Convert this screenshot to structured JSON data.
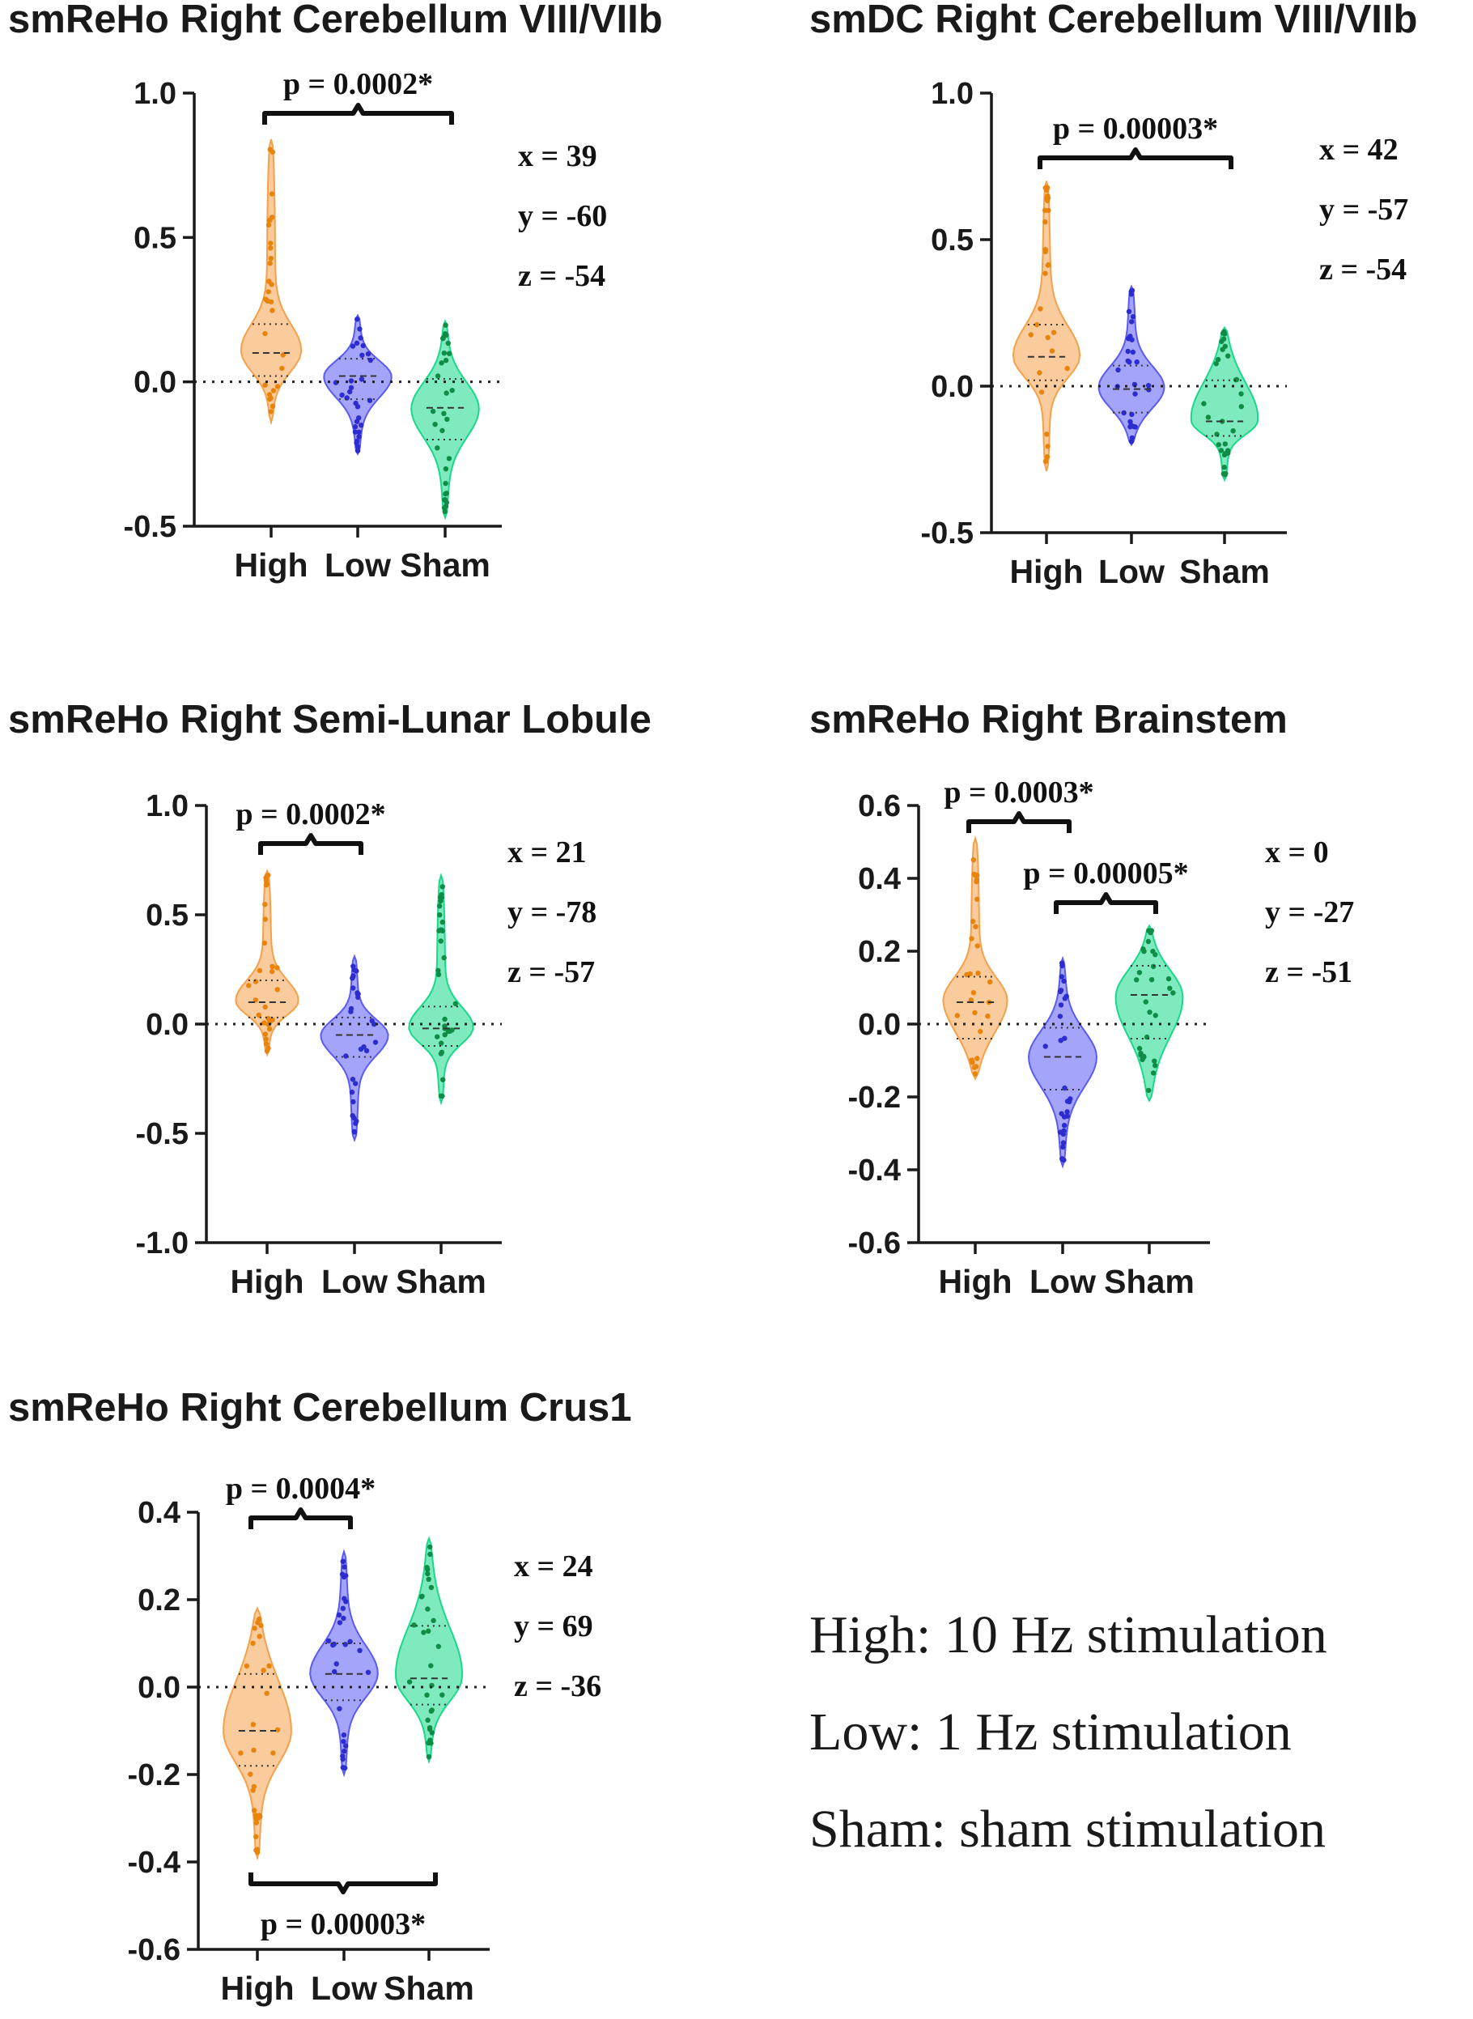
{
  "colors": {
    "High": "#f5a04a",
    "Low": "#5a5af5",
    "Sham": "#18d98a",
    "HighDot": "#e8840c",
    "LowDot": "#2d2dcf",
    "ShamDot": "#0f8c45"
  },
  "chart_data": [
    {
      "type": "violin",
      "title": "smReHo Right Cerebellum VIII/VIIb",
      "categories": [
        "High",
        "Low",
        "Sham"
      ],
      "ylim": [
        -0.5,
        1.0
      ],
      "yticks": [
        1.0,
        0.5,
        0.0,
        -0.5
      ],
      "ytick_labels": [
        "1.0",
        "0.5",
        "0.0",
        "-0.5"
      ],
      "series": [
        {
          "name": "High",
          "min": -0.14,
          "max": 0.84,
          "q1": 0.02,
          "median": 0.1,
          "q3": 0.2
        },
        {
          "name": "Low",
          "min": -0.25,
          "max": 0.23,
          "q1": -0.06,
          "median": 0.02,
          "q3": 0.08
        },
        {
          "name": "Sham",
          "min": -0.47,
          "max": 0.21,
          "q1": -0.2,
          "median": -0.09,
          "q3": 0.01
        }
      ],
      "brackets": [
        {
          "from": "High",
          "to": "Sham",
          "label": "p = 0.0002*"
        }
      ],
      "coords": [
        "x = 39",
        "y = -60",
        "z = -54"
      ]
    },
    {
      "type": "violin",
      "title": "smDC Right Cerebellum VIII/VIIb",
      "categories": [
        "High",
        "Low",
        "Sham"
      ],
      "ylim": [
        -0.5,
        1.0
      ],
      "yticks": [
        1.0,
        0.5,
        0.0,
        -0.5
      ],
      "ytick_labels": [
        "1.0",
        "0.5",
        "0.0",
        "-0.5"
      ],
      "series": [
        {
          "name": "High",
          "min": -0.29,
          "max": 0.7,
          "q1": 0.02,
          "median": 0.1,
          "q3": 0.21
        },
        {
          "name": "Low",
          "min": -0.2,
          "max": 0.34,
          "q1": -0.09,
          "median": -0.01,
          "q3": 0.07
        },
        {
          "name": "Sham",
          "min": -0.32,
          "max": 0.2,
          "q1": -0.17,
          "median": -0.12,
          "q3": 0.02
        }
      ],
      "brackets": [
        {
          "from": "High",
          "to": "Sham",
          "label": "p = 0.00003*"
        }
      ],
      "coords": [
        "x = 42",
        "y = -57",
        "z = -54"
      ]
    },
    {
      "type": "violin",
      "title": "smReHo Right Semi-Lunar Lobule",
      "categories": [
        "High",
        "Low",
        "Sham"
      ],
      "ylim": [
        -1.0,
        1.0
      ],
      "yticks": [
        1.0,
        0.5,
        0.0,
        -0.5,
        -1.0
      ],
      "ytick_labels": [
        "1.0",
        "0.5",
        "0.0",
        "-0.5",
        "-1.0"
      ],
      "series": [
        {
          "name": "High",
          "min": -0.14,
          "max": 0.7,
          "q1": 0.03,
          "median": 0.1,
          "q3": 0.2
        },
        {
          "name": "Low",
          "min": -0.53,
          "max": 0.31,
          "q1": -0.15,
          "median": -0.05,
          "q3": 0.03
        },
        {
          "name": "Sham",
          "min": -0.36,
          "max": 0.68,
          "q1": -0.1,
          "median": -0.02,
          "q3": 0.08
        }
      ],
      "brackets": [
        {
          "from": "High",
          "to": "Low",
          "label": "p = 0.0002*"
        }
      ],
      "coords": [
        "x = 21",
        "y = -78",
        "z = -57"
      ]
    },
    {
      "type": "violin",
      "title": "smReHo Right Brainstem",
      "categories": [
        "High",
        "Low",
        "Sham"
      ],
      "ylim": [
        -0.6,
        0.6
      ],
      "yticks": [
        0.6,
        0.4,
        0.2,
        0.0,
        -0.2,
        -0.4,
        -0.6
      ],
      "ytick_labels": [
        "0.6",
        "0.4",
        "0.2",
        "0.0",
        "-0.2",
        "-0.4",
        "-0.6"
      ],
      "series": [
        {
          "name": "High",
          "min": -0.15,
          "max": 0.51,
          "q1": -0.04,
          "median": 0.06,
          "q3": 0.13
        },
        {
          "name": "Low",
          "min": -0.39,
          "max": 0.18,
          "q1": -0.18,
          "median": -0.09,
          "q3": -0.01
        },
        {
          "name": "Sham",
          "min": -0.21,
          "max": 0.27,
          "q1": -0.04,
          "median": 0.08,
          "q3": 0.16
        }
      ],
      "brackets": [
        {
          "from": "High",
          "to": "Low",
          "label": "p = 0.0003*"
        },
        {
          "from": "Low",
          "to": "Sham",
          "label": "p = 0.00005*"
        }
      ],
      "coords": [
        "x = 0",
        "y = -27",
        "z = -51"
      ]
    },
    {
      "type": "violin",
      "title": "smReHo Right Cerebellum Crus1",
      "categories": [
        "High",
        "Low",
        "Sham"
      ],
      "ylim": [
        -0.6,
        0.4
      ],
      "yticks": [
        0.4,
        0.2,
        0.0,
        -0.2,
        -0.4,
        -0.6
      ],
      "ytick_labels": [
        "0.4",
        "0.2",
        "0.0",
        "-0.2",
        "-0.4",
        "-0.6"
      ],
      "series": [
        {
          "name": "High",
          "min": -0.39,
          "max": 0.18,
          "q1": -0.18,
          "median": -0.1,
          "q3": 0.03
        },
        {
          "name": "Low",
          "min": -0.2,
          "max": 0.31,
          "q1": -0.03,
          "median": 0.03,
          "q3": 0.1
        },
        {
          "name": "Sham",
          "min": -0.17,
          "max": 0.34,
          "q1": -0.04,
          "median": 0.02,
          "q3": 0.14
        }
      ],
      "brackets": [
        {
          "from": "High",
          "to": "Low",
          "label": "p = 0.0004*"
        },
        {
          "from": "High",
          "to": "Sham",
          "label": "p = 0.00003*",
          "position": "below"
        }
      ],
      "coords": [
        "x = 24",
        "y = 69",
        "z = -36"
      ]
    }
  ],
  "legend": {
    "lines": [
      "High: 10 Hz stimulation",
      "Low: 1 Hz stimulation",
      "Sham: sham stimulation"
    ]
  }
}
